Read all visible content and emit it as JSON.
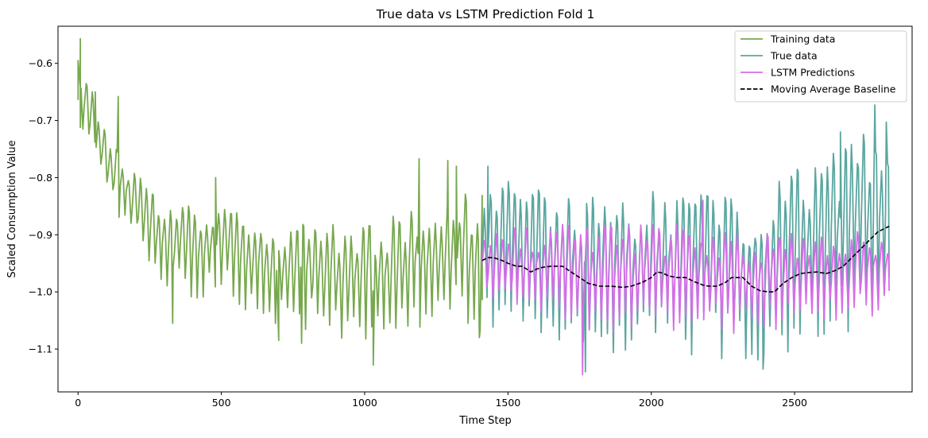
{
  "chart_data": {
    "type": "line",
    "title": "True data vs LSTM Prediction Fold 1",
    "xlabel": "Time Step",
    "ylabel": "Scaled Consumption Value",
    "xlim": [
      -70,
      2910
    ],
    "ylim": [
      -1.175,
      -0.535
    ],
    "xticks": [
      0,
      500,
      1000,
      1500,
      2000,
      2500
    ],
    "xtick_labels": [
      "0",
      "500",
      "1000",
      "1500",
      "2000",
      "2500"
    ],
    "yticks": [
      -0.6,
      -0.7,
      -0.8,
      -0.9,
      -1.0,
      -1.1
    ],
    "ytick_labels": [
      "−0.6",
      "−0.7",
      "−0.8",
      "−0.9",
      "−1.0",
      "−1.1"
    ],
    "grid": false,
    "legend_position": "top-right",
    "series": [
      {
        "name": "Training data",
        "color": "#77a84e",
        "style": "solid",
        "x_range": [
          0,
          1410
        ],
        "period": 21,
        "trend": [
          [
            0,
            -0.65
          ],
          [
            50,
            -0.71
          ],
          [
            120,
            -0.79
          ],
          [
            200,
            -0.85
          ],
          [
            300,
            -0.92
          ],
          [
            400,
            -0.93
          ],
          [
            500,
            -0.92
          ],
          [
            600,
            -0.95
          ],
          [
            700,
            -0.97
          ],
          [
            800,
            -0.97
          ],
          [
            900,
            -0.98
          ],
          [
            1000,
            -0.99
          ],
          [
            1100,
            -0.97
          ],
          [
            1200,
            -0.96
          ],
          [
            1300,
            -0.94
          ],
          [
            1410,
            -0.95
          ]
        ],
        "amplitude": [
          [
            0,
            0.05
          ],
          [
            300,
            0.07
          ],
          [
            800,
            0.08
          ],
          [
            1410,
            0.1
          ]
        ],
        "peaks": [
          [
            0,
            -0.595
          ],
          [
            8,
            -0.557
          ],
          [
            60,
            -0.65
          ],
          [
            140,
            -0.658
          ],
          [
            480,
            -0.8
          ],
          [
            1190,
            -0.767
          ],
          [
            1290,
            -0.77
          ],
          [
            1320,
            -0.78
          ]
        ],
        "troughs": [
          [
            8,
            -0.712
          ],
          [
            330,
            -1.055
          ],
          [
            700,
            -1.085
          ],
          [
            780,
            -1.09
          ],
          [
            1030,
            -1.128
          ],
          [
            1400,
            -1.08
          ]
        ]
      },
      {
        "name": "True data",
        "color": "#5aa6a0",
        "style": "solid",
        "x_range": [
          1410,
          2830
        ],
        "period": 21,
        "trend": [
          [
            1410,
            -0.94
          ],
          [
            1500,
            -0.94
          ],
          [
            1700,
            -0.955
          ],
          [
            1800,
            -0.97
          ],
          [
            2000,
            -0.96
          ],
          [
            2200,
            -0.975
          ],
          [
            2400,
            -0.98
          ],
          [
            2500,
            -0.94
          ],
          [
            2600,
            -0.92
          ],
          [
            2700,
            -0.9
          ],
          [
            2830,
            -0.88
          ]
        ],
        "amplitude": [
          [
            1410,
            0.11
          ],
          [
            2000,
            0.12
          ],
          [
            2500,
            0.13
          ],
          [
            2830,
            0.15
          ]
        ],
        "peaks": [
          [
            1430,
            -0.78
          ],
          [
            2660,
            -0.72
          ],
          [
            2780,
            -0.673
          ],
          [
            2820,
            -0.703
          ]
        ],
        "troughs": [
          [
            1770,
            -1.14
          ],
          [
            2390,
            -1.135
          ]
        ]
      },
      {
        "name": "LSTM Predictions",
        "color": "#d56ee8",
        "style": "solid",
        "x_range": [
          1410,
          2830
        ],
        "period": 21,
        "trend": [
          [
            1410,
            -0.96
          ],
          [
            1600,
            -0.965
          ],
          [
            1800,
            -0.975
          ],
          [
            2000,
            -0.975
          ],
          [
            2200,
            -0.98
          ],
          [
            2400,
            -0.985
          ],
          [
            2600,
            -0.975
          ],
          [
            2830,
            -0.965
          ]
        ],
        "amplitude": [
          [
            1410,
            0.055
          ],
          [
            1700,
            0.08
          ],
          [
            2200,
            0.08
          ],
          [
            2830,
            0.06
          ]
        ],
        "peaks": [
          [
            2180,
            -0.84
          ]
        ],
        "troughs": [
          [
            1760,
            -1.145
          ]
        ]
      },
      {
        "name": "Moving Average Baseline",
        "color": "#000000",
        "style": "dashed",
        "points": [
          [
            1410,
            -0.945
          ],
          [
            1430,
            -0.94
          ],
          [
            1450,
            -0.94
          ],
          [
            1480,
            -0.945
          ],
          [
            1500,
            -0.95
          ],
          [
            1530,
            -0.955
          ],
          [
            1550,
            -0.955
          ],
          [
            1580,
            -0.965
          ],
          [
            1600,
            -0.96
          ],
          [
            1620,
            -0.957
          ],
          [
            1650,
            -0.955
          ],
          [
            1690,
            -0.955
          ],
          [
            1720,
            -0.965
          ],
          [
            1750,
            -0.975
          ],
          [
            1780,
            -0.985
          ],
          [
            1820,
            -0.99
          ],
          [
            1860,
            -0.99
          ],
          [
            1900,
            -0.992
          ],
          [
            1930,
            -0.99
          ],
          [
            1970,
            -0.983
          ],
          [
            2000,
            -0.975
          ],
          [
            2020,
            -0.965
          ],
          [
            2040,
            -0.967
          ],
          [
            2060,
            -0.972
          ],
          [
            2090,
            -0.975
          ],
          [
            2120,
            -0.975
          ],
          [
            2150,
            -0.982
          ],
          [
            2180,
            -0.988
          ],
          [
            2200,
            -0.99
          ],
          [
            2230,
            -0.99
          ],
          [
            2260,
            -0.983
          ],
          [
            2280,
            -0.975
          ],
          [
            2300,
            -0.975
          ],
          [
            2320,
            -0.975
          ],
          [
            2350,
            -0.99
          ],
          [
            2380,
            -0.998
          ],
          [
            2410,
            -1.0
          ],
          [
            2430,
            -1.0
          ],
          [
            2460,
            -0.985
          ],
          [
            2490,
            -0.975
          ],
          [
            2520,
            -0.968
          ],
          [
            2550,
            -0.966
          ],
          [
            2580,
            -0.965
          ],
          [
            2610,
            -0.968
          ],
          [
            2640,
            -0.963
          ],
          [
            2670,
            -0.955
          ],
          [
            2700,
            -0.94
          ],
          [
            2730,
            -0.925
          ],
          [
            2760,
            -0.91
          ],
          [
            2790,
            -0.895
          ],
          [
            2810,
            -0.89
          ],
          [
            2830,
            -0.885
          ]
        ]
      }
    ]
  }
}
